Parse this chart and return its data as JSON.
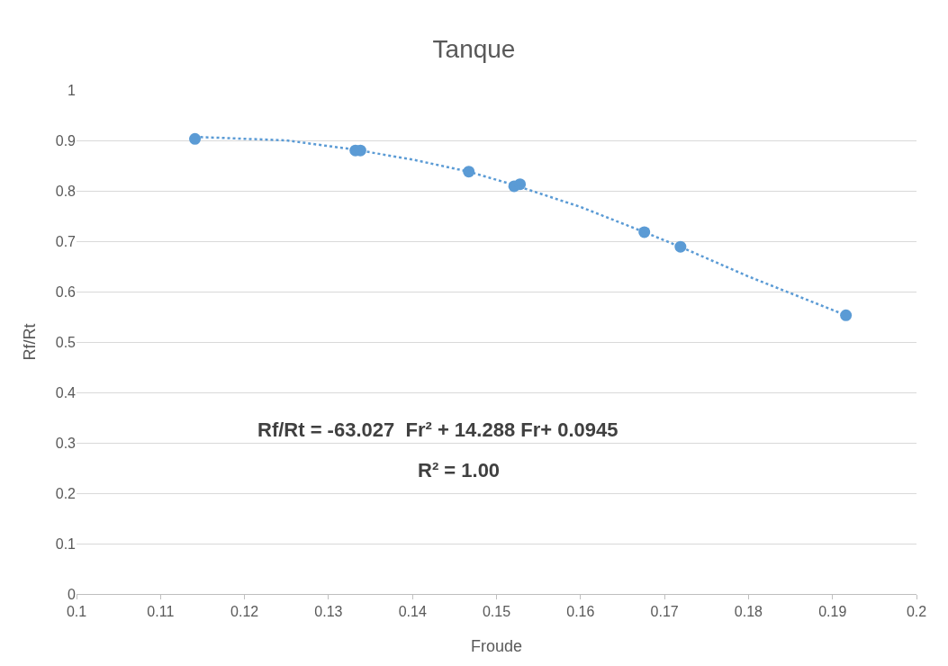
{
  "chart_data": {
    "type": "scatter",
    "title": "Tanque",
    "xlabel": "Froude",
    "ylabel": "Rf/Rt",
    "xlim": [
      0.1,
      0.2
    ],
    "xticks": [
      0.1,
      0.11,
      0.12,
      0.13,
      0.14,
      0.15,
      0.16,
      0.17,
      0.18,
      0.19,
      0.2
    ],
    "ylim": [
      0,
      1
    ],
    "yticks": [
      0,
      0.1,
      0.2,
      0.3,
      0.4,
      0.5,
      0.6,
      0.7,
      0.8,
      0.9,
      1
    ],
    "grid": "y",
    "legend": false,
    "marker": "circle",
    "series": [
      {
        "color": "#5b9bd5",
        "x": [
          0.1141,
          0.1332,
          0.1338,
          0.1467,
          0.1521,
          0.1528,
          0.1676,
          0.1719,
          0.1916
        ],
        "values": [
          0.903,
          0.88,
          0.88,
          0.838,
          0.809,
          0.813,
          0.718,
          0.689,
          0.553
        ]
      },
      {
        "type": "line",
        "line_style": "dotted",
        "marker": "none",
        "color": "#5b9bd5",
        "x": [
          0.1141,
          0.125,
          0.133,
          0.14,
          0.1467,
          0.152,
          0.16,
          0.1676,
          0.172,
          0.18,
          0.1916
        ],
        "values": [
          0.907,
          0.9,
          0.882,
          0.862,
          0.838,
          0.812,
          0.768,
          0.718,
          0.688,
          0.63,
          0.553
        ]
      }
    ],
    "annotations": [
      "Rf/Rt = -63.027  Fr² + 14.288 Fr+ 0.0945",
      "R² = 1.00"
    ]
  }
}
